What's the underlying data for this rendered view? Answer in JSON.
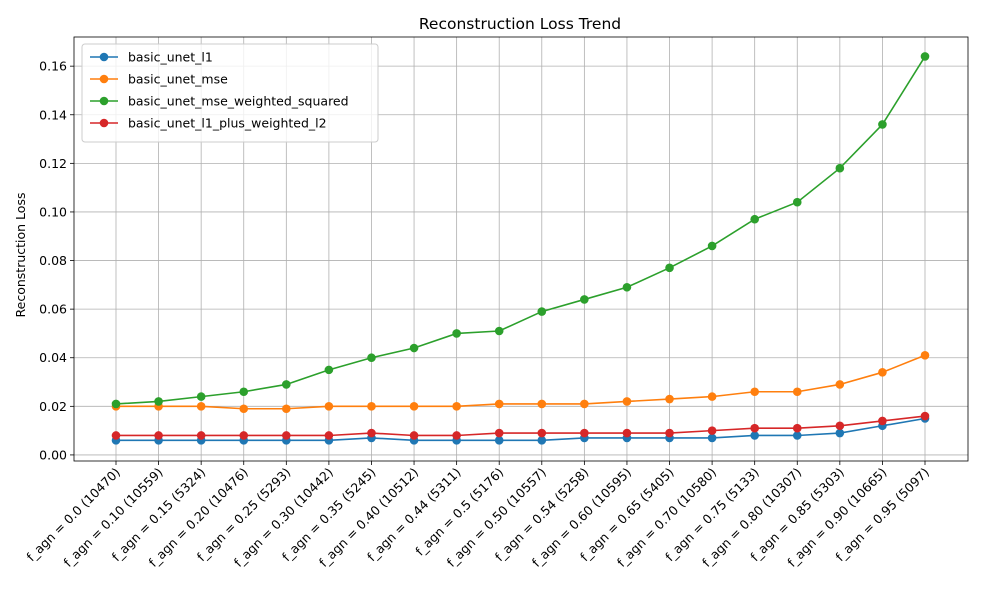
{
  "chart_data": {
    "type": "line",
    "title": "Reconstruction Loss Trend",
    "xlabel": "",
    "ylabel": "Reconstruction Loss",
    "categories": [
      "f_agn = 0.0 (10470)",
      "f_agn = 0.10 (10559)",
      "f_agn = 0.15 (5324)",
      "f_agn = 0.20 (10476)",
      "f_agn = 0.25 (5293)",
      "f_agn = 0.30 (10442)",
      "f_agn = 0.35 (5245)",
      "f_agn = 0.40 (10512)",
      "f_agn = 0.44 (5311)",
      "f_agn = 0.5 (5176)",
      "f_agn = 0.50 (10557)",
      "f_agn = 0.54 (5258)",
      "f_agn = 0.60 (10595)",
      "f_agn = 0.65 (5405)",
      "f_agn = 0.70 (10580)",
      "f_agn = 0.75 (5133)",
      "f_agn = 0.80 (10307)",
      "f_agn = 0.85 (5303)",
      "f_agn = 0.90 (10665)",
      "f_agn = 0.95 (5097)"
    ],
    "ylim": [
      -0.0025,
      0.172
    ],
    "yticks": [
      "0.00",
      "0.02",
      "0.04",
      "0.06",
      "0.08",
      "0.10",
      "0.12",
      "0.14",
      "0.16"
    ],
    "ytick_values": [
      0,
      0.02,
      0.04,
      0.06,
      0.08,
      0.1,
      0.12,
      0.14,
      0.16
    ],
    "grid": true,
    "legend_position": "top-left",
    "series": [
      {
        "name": "basic_unet_l1",
        "color": "#1f77b4",
        "values": [
          0.006,
          0.006,
          0.006,
          0.006,
          0.006,
          0.006,
          0.007,
          0.006,
          0.006,
          0.006,
          0.006,
          0.007,
          0.007,
          0.007,
          0.007,
          0.008,
          0.008,
          0.009,
          0.012,
          0.015
        ]
      },
      {
        "name": "basic_unet_mse",
        "color": "#ff7f0e",
        "values": [
          0.02,
          0.02,
          0.02,
          0.019,
          0.019,
          0.02,
          0.02,
          0.02,
          0.02,
          0.021,
          0.021,
          0.021,
          0.022,
          0.023,
          0.024,
          0.026,
          0.026,
          0.029,
          0.034,
          0.041
        ]
      },
      {
        "name": "basic_unet_mse_weighted_squared",
        "color": "#2ca02c",
        "values": [
          0.021,
          0.022,
          0.024,
          0.026,
          0.029,
          0.035,
          0.04,
          0.044,
          0.05,
          0.051,
          0.059,
          0.064,
          0.069,
          0.077,
          0.086,
          0.097,
          0.104,
          0.118,
          0.136,
          0.164
        ]
      },
      {
        "name": "basic_unet_l1_plus_weighted_l2",
        "color": "#d62728",
        "values": [
          0.008,
          0.008,
          0.008,
          0.008,
          0.008,
          0.008,
          0.009,
          0.008,
          0.008,
          0.009,
          0.009,
          0.009,
          0.009,
          0.009,
          0.01,
          0.011,
          0.011,
          0.012,
          0.014,
          0.016
        ]
      }
    ]
  }
}
